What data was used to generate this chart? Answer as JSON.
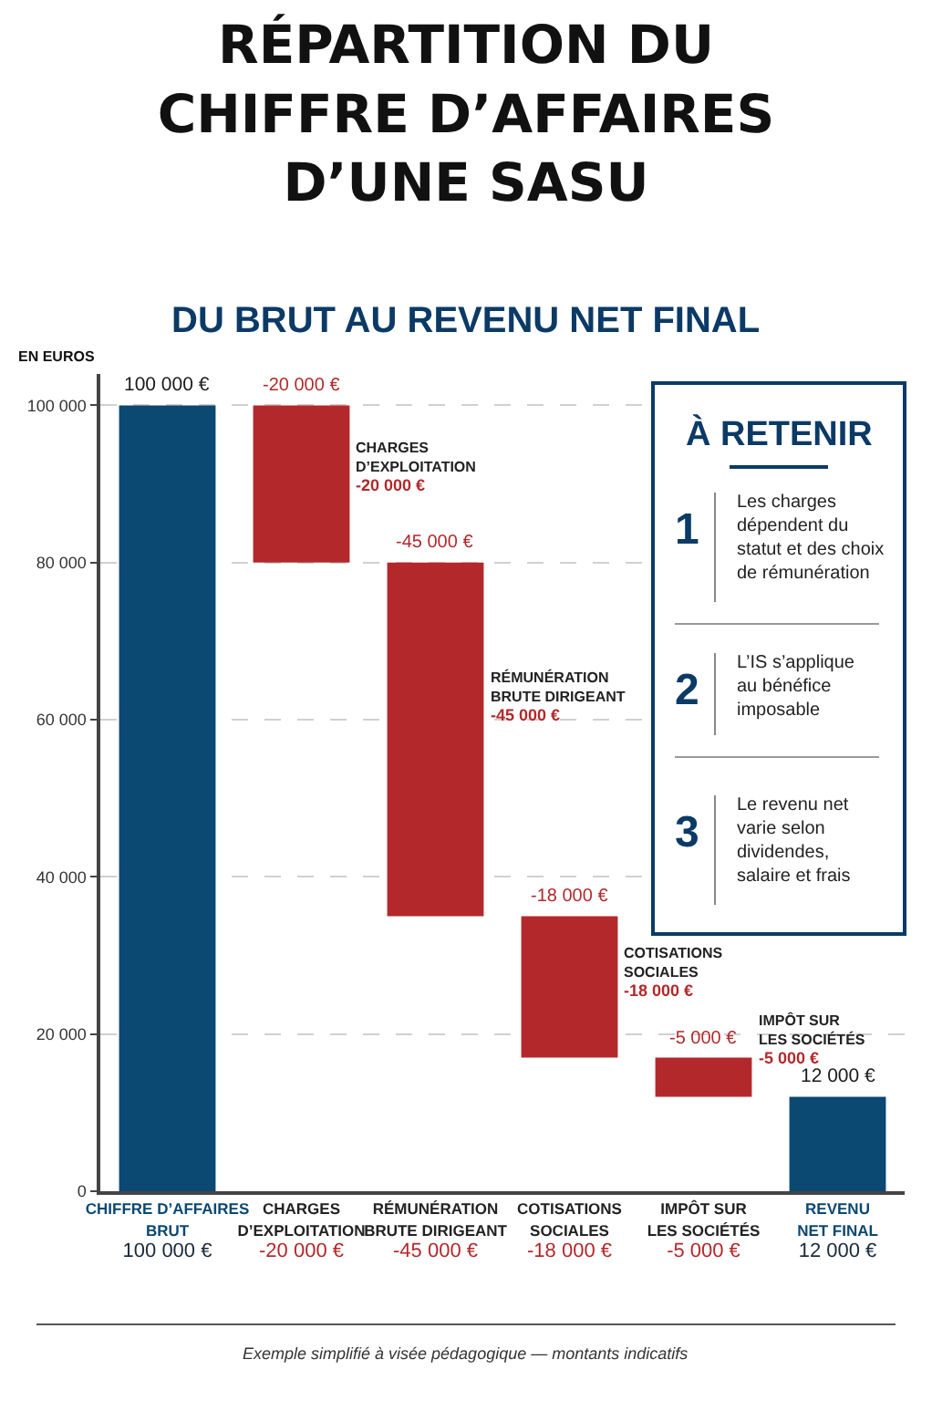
{
  "chart_data": {
    "type": "bar",
    "title": "RÉPARTITION DU\nCHIFFRE D’AFFAIRES\nD’UNE SASU",
    "subtitle": "DU BRUT AU REVENU NET FINAL",
    "ylabel": "EN EUROS",
    "categories": [
      "CHIFFRE D’AFFAIRES\nBRUT",
      "CHARGES\nD’EXPLOITATION",
      "RÉMUNÉRATION\nBRUTE DIRIGEANT",
      "COTISATIONS\nSOCIALES",
      "IMPÔT SUR\nLES SOCIÉTÉS",
      "REVENU\nNET FINAL"
    ],
    "values": [
      100000,
      -20000,
      -45000,
      -18000,
      -5000,
      12000
    ],
    "base": [
      0,
      100000,
      80000,
      35000,
      17000,
      0
    ],
    "colors": [
      "#0b4872",
      "#b3292b",
      "#b3292b",
      "#b3292b",
      "#b3292b",
      "#0b4872"
    ],
    "value_labels": [
      "100 000 €",
      "-20 000 €",
      "-45 000 €",
      "-18 000 €",
      "-5 000 €",
      "12 000 €"
    ],
    "ylim": [
      0,
      104000
    ],
    "yticks": [
      {
        "value": 0,
        "label": "0"
      },
      {
        "value": 20000,
        "label": "20 000"
      },
      {
        "value": 40000,
        "label": "40 000"
      },
      {
        "value": 60000,
        "label": "60 000"
      },
      {
        "value": 80000,
        "label": "80 000"
      },
      {
        "value": 100000,
        "label": "100 000"
      }
    ],
    "grid": "y",
    "annotations": [
      "CHARGES\nD’EXPLOITATION\n-20 000 €",
      "RÉMUNÉRATION\nBRUTE DIRIGEANT\n-45 000 €",
      "COTISATIONS\nSOCIALES\n-18 000 €",
      "IMPÔT SUR\nLES SOCIÉTÉS\n-5 000 €",
      "À RETENIR",
      "1",
      "Les charges\ndépendent du\nstatut et des choix\nde rémunération",
      "2",
      "L’IS s’applique\nau bénéfice\nimposable",
      "3",
      "Le revenu net\nvarie selon\ndividendes,\nsalaire et frais",
      "Exemple simplifié à visée pédagogique — montants indicatifs"
    ]
  }
}
